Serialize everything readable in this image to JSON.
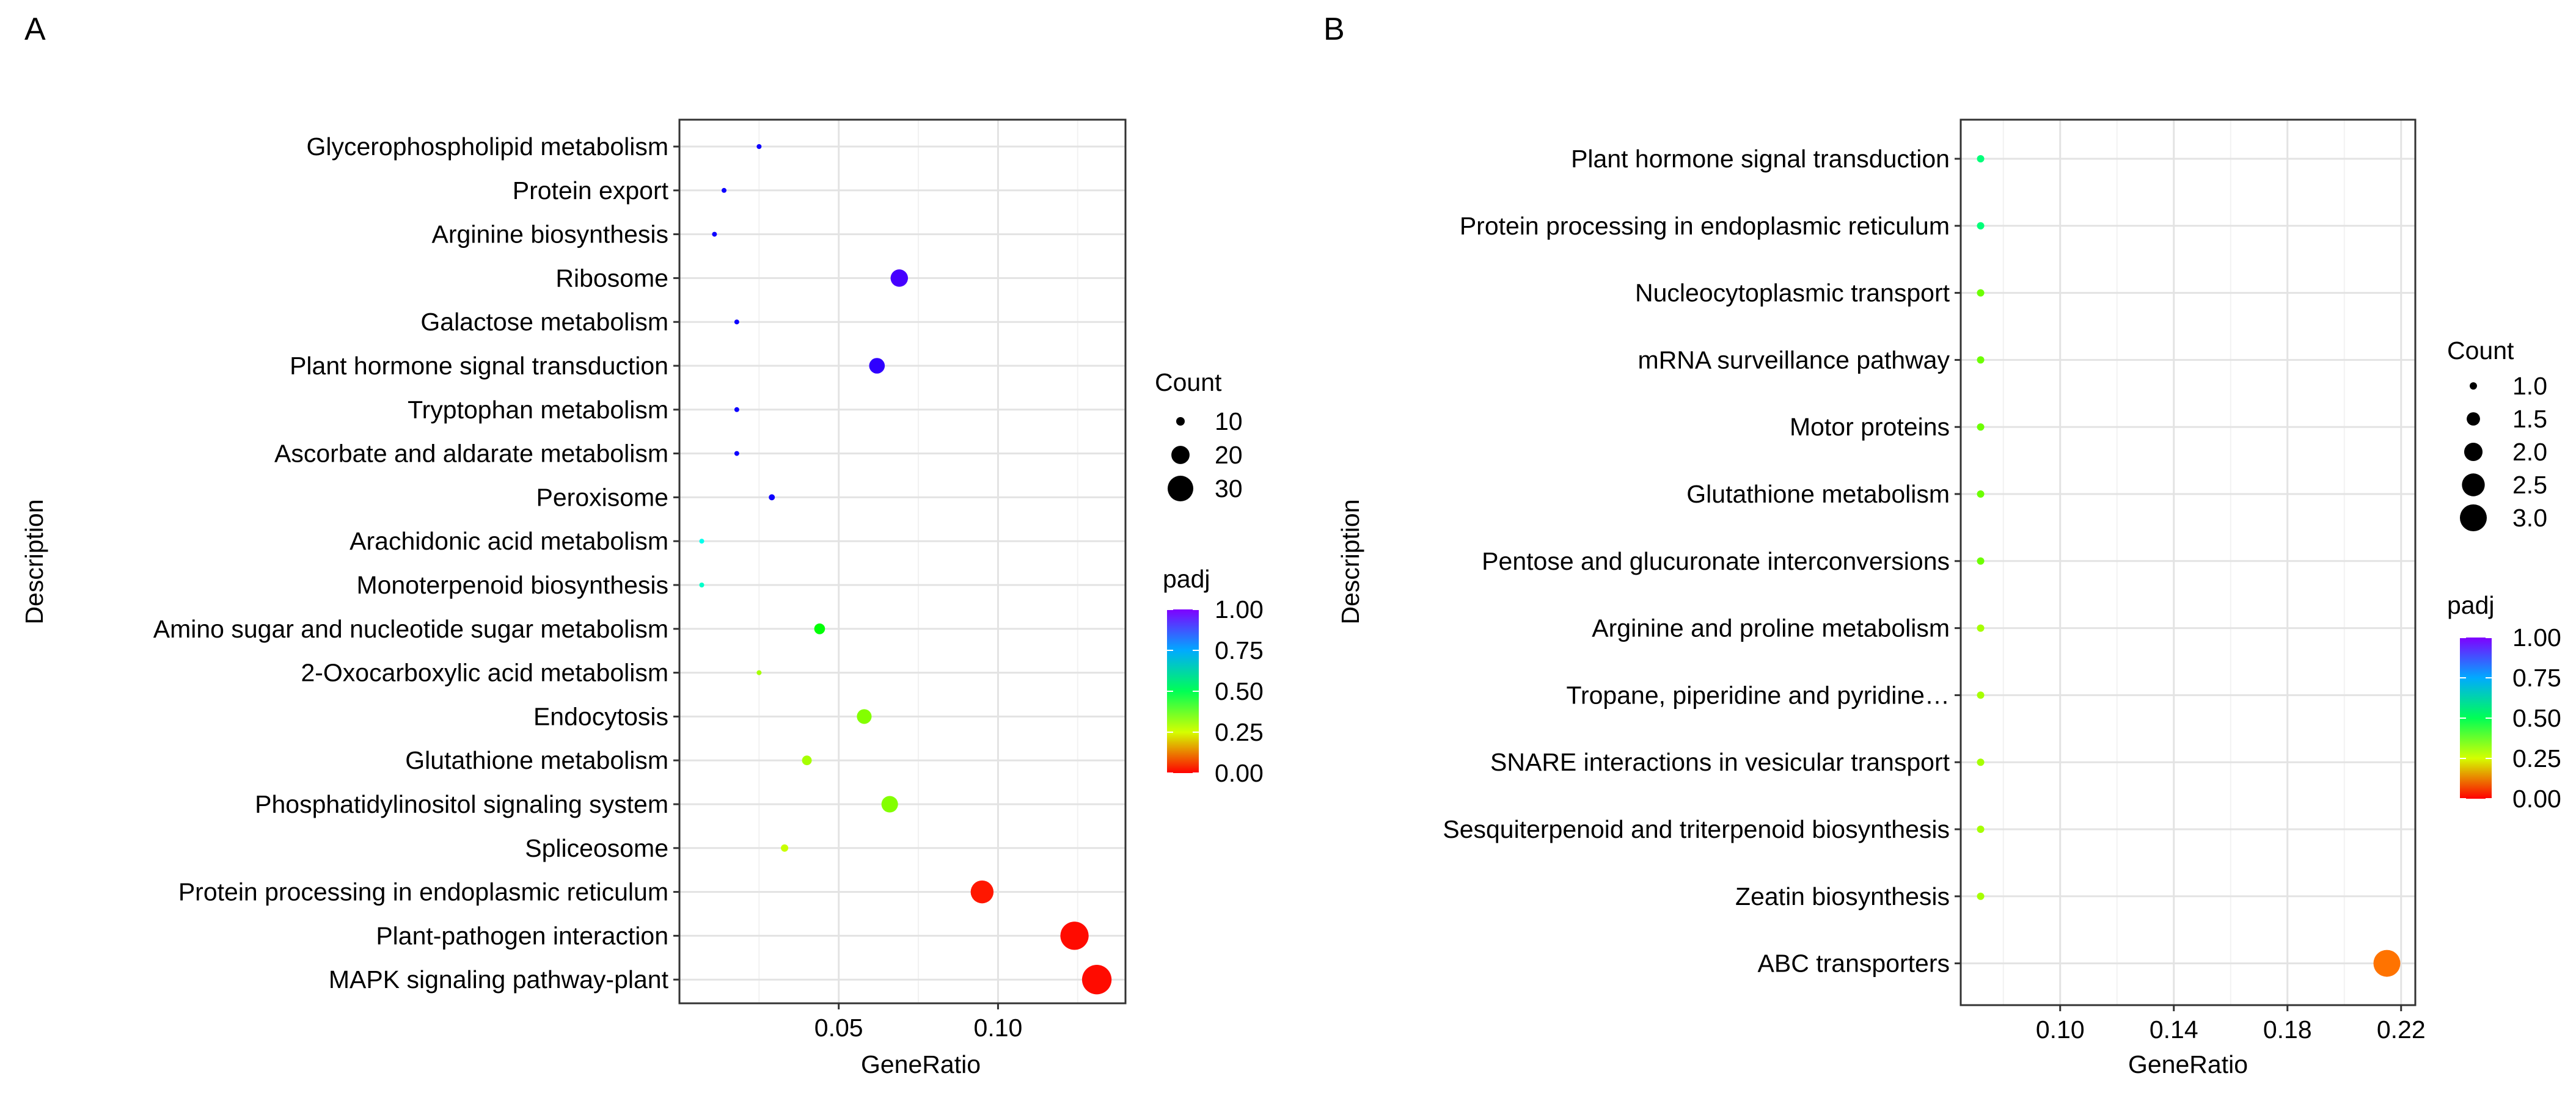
{
  "chart_data": [
    {
      "panel_label": "A",
      "type": "scatter",
      "xlabel": "GeneRatio",
      "ylabel": "Description",
      "xlim": [
        0.0,
        0.14
      ],
      "xticks": [
        0.05,
        0.1
      ],
      "xtick_labels": [
        "0.05",
        "0.10"
      ],
      "grid": true,
      "categories": [
        "Glycerophospholipid metabolism",
        "Protein export",
        "Arginine biosynthesis",
        "Ribosome",
        "Galactose metabolism",
        "Plant hormone signal transduction",
        "Tryptophan metabolism",
        "Ascorbate and aldarate metabolism",
        "Peroxisome",
        "Arachidonic acid metabolism",
        "Monoterpenoid biosynthesis",
        "Amino sugar and nucleotide sugar metabolism",
        "2-Oxocarboxylic acid metabolism",
        "Endocytosis",
        "Glutathione metabolism",
        "Phosphatidylinositol signaling system",
        "Spliceosome",
        "Protein processing in endoplasmic reticulum",
        "Plant-pathogen interaction",
        "MAPK signaling pathway-plant"
      ],
      "x": [
        0.025,
        0.014,
        0.011,
        0.069,
        0.018,
        0.062,
        0.018,
        0.018,
        0.029,
        0.007,
        0.007,
        0.044,
        0.025,
        0.058,
        0.04,
        0.066,
        0.033,
        0.095,
        0.124,
        0.131
      ],
      "count": [
        7,
        4,
        3,
        19,
        5,
        17,
        5,
        5,
        8,
        1,
        1,
        12,
        7,
        16,
        11,
        18,
        9,
        26,
        34,
        36
      ],
      "padj": [
        0.9,
        0.9,
        0.9,
        0.95,
        0.9,
        0.93,
        0.9,
        0.9,
        0.9,
        0.65,
        0.62,
        0.45,
        0.3,
        0.33,
        0.3,
        0.33,
        0.27,
        0.02,
        0.01,
        0.01
      ],
      "legend": {
        "size_title": "Count",
        "size_values": [
          10,
          20,
          30
        ],
        "size_labels": [
          "10",
          "20",
          "30"
        ],
        "color_title": "padj",
        "color_range": [
          0.0,
          1.0
        ],
        "color_ticks": [
          1.0,
          0.75,
          0.5,
          0.25,
          0.0
        ],
        "color_labels": [
          "1.00",
          "0.75",
          "0.50",
          "0.25",
          "0.00"
        ]
      }
    },
    {
      "panel_label": "B",
      "type": "scatter",
      "xlabel": "GeneRatio",
      "ylabel": "Description",
      "xlim": [
        0.065,
        0.225
      ],
      "xticks": [
        0.1,
        0.14,
        0.18,
        0.22
      ],
      "xtick_labels": [
        "0.10",
        "0.14",
        "0.18",
        "0.22"
      ],
      "grid": true,
      "categories": [
        "Plant hormone signal transduction",
        "Protein processing in endoplasmic reticulum",
        "Nucleocytoplasmic transport",
        "mRNA surveillance pathway",
        "Motor proteins",
        "Glutathione metabolism",
        "Pentose and glucuronate interconversions",
        "Arginine and proline metabolism",
        "Tropane, piperidine and pyridine…",
        "SNARE interactions in vesicular transport",
        "Sesquiterpenoid and triterpenoid biosynthesis",
        "Zeatin biosynthesis",
        "ABC transporters"
      ],
      "x": [
        0.072,
        0.072,
        0.072,
        0.072,
        0.072,
        0.072,
        0.072,
        0.072,
        0.072,
        0.072,
        0.072,
        0.072,
        0.215
      ],
      "count": [
        1,
        1,
        1,
        1,
        1,
        1,
        1,
        1,
        1,
        1,
        1,
        1,
        3
      ],
      "padj": [
        0.55,
        0.55,
        0.35,
        0.35,
        0.35,
        0.35,
        0.35,
        0.3,
        0.3,
        0.3,
        0.3,
        0.3,
        0.1
      ],
      "legend": {
        "size_title": "Count",
        "size_values": [
          1.0,
          1.5,
          2.0,
          2.5,
          3.0
        ],
        "size_labels": [
          "1.0",
          "1.5",
          "2.0",
          "2.5",
          "3.0"
        ],
        "color_title": "padj",
        "color_range": [
          0.0,
          1.0
        ],
        "color_ticks": [
          1.0,
          0.75,
          0.5,
          0.25,
          0.0
        ],
        "color_labels": [
          "1.00",
          "0.75",
          "0.50",
          "0.25",
          "0.00"
        ]
      }
    }
  ]
}
